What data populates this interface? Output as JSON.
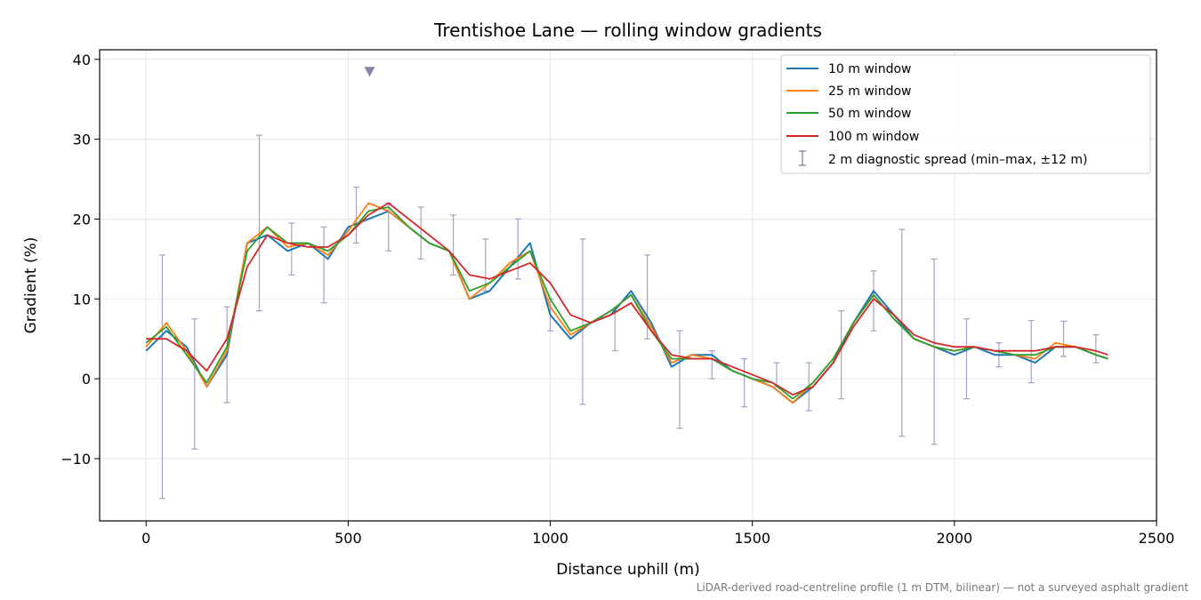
{
  "chart_data": {
    "type": "line",
    "title": "Trentishoe Lane — rolling window gradients",
    "xlabel": "Distance uphill (m)",
    "ylabel": "Gradient (%)",
    "xlim": [
      -115,
      2500
    ],
    "ylim": [
      -17.8,
      41.2
    ],
    "xticks": [
      0,
      500,
      1000,
      1500,
      2000,
      2500
    ],
    "yticks": [
      -10,
      0,
      10,
      20,
      30,
      40
    ],
    "grid": true,
    "legend_position": "top-right",
    "footnote": "LiDAR-derived road-centreline profile (1 m DTM, bilinear) — not a surveyed asphalt gradient",
    "x": [
      0,
      50,
      100,
      150,
      200,
      250,
      300,
      350,
      400,
      450,
      500,
      550,
      600,
      650,
      700,
      750,
      800,
      850,
      900,
      950,
      1000,
      1050,
      1100,
      1150,
      1200,
      1250,
      1300,
      1350,
      1400,
      1450,
      1500,
      1550,
      1600,
      1650,
      1700,
      1750,
      1800,
      1850,
      1900,
      1950,
      2000,
      2050,
      2100,
      2150,
      2200,
      2250,
      2300,
      2350,
      2380
    ],
    "series": [
      {
        "name": "10 m window",
        "color": "#1f77b4",
        "values": [
          3.5,
          6.0,
          4.0,
          -1.0,
          3.0,
          17.0,
          18.0,
          16.0,
          17.0,
          15.0,
          19.0,
          20.0,
          21.0,
          19.0,
          17.0,
          16.0,
          10.0,
          11.0,
          14.0,
          17.0,
          8.0,
          5.0,
          7.0,
          8.0,
          11.0,
          7.0,
          1.5,
          3.0,
          3.0,
          1.0,
          0.0,
          -1.0,
          -3.0,
          -1.0,
          2.0,
          7.0,
          11.0,
          8.0,
          5.0,
          4.0,
          3.0,
          4.0,
          3.0,
          3.0,
          2.0,
          4.0,
          4.0,
          3.0,
          2.5
        ]
      },
      {
        "name": "25 m window",
        "color": "#ff7f0e",
        "values": [
          4.0,
          7.0,
          3.5,
          -1.0,
          3.5,
          17.0,
          19.0,
          16.5,
          17.0,
          15.5,
          18.5,
          22.0,
          21.0,
          19.0,
          17.0,
          16.0,
          10.0,
          12.0,
          14.5,
          16.0,
          9.0,
          5.5,
          7.0,
          8.5,
          10.5,
          6.5,
          2.0,
          3.0,
          2.5,
          1.0,
          0.0,
          -1.0,
          -3.0,
          -0.5,
          2.5,
          7.0,
          10.5,
          7.5,
          5.0,
          4.0,
          3.5,
          4.0,
          3.5,
          3.0,
          2.5,
          4.5,
          4.0,
          3.0,
          2.5
        ]
      },
      {
        "name": "50 m window",
        "color": "#2ca02c",
        "values": [
          4.5,
          6.5,
          3.0,
          -0.5,
          4.0,
          16.0,
          19.0,
          17.0,
          17.0,
          16.0,
          18.0,
          21.0,
          21.5,
          19.0,
          17.0,
          16.0,
          11.0,
          12.0,
          14.0,
          16.0,
          10.0,
          6.0,
          7.0,
          8.5,
          10.5,
          6.0,
          2.5,
          2.5,
          2.5,
          1.0,
          0.0,
          -0.5,
          -2.5,
          -0.5,
          2.5,
          7.0,
          10.5,
          7.5,
          5.0,
          4.0,
          3.5,
          4.0,
          3.5,
          3.0,
          3.0,
          4.0,
          4.0,
          3.0,
          2.5
        ]
      },
      {
        "name": "100 m window",
        "color": "#d62728",
        "values": [
          5.0,
          5.0,
          3.5,
          1.0,
          5.0,
          14.0,
          18.0,
          17.0,
          16.5,
          16.5,
          18.0,
          20.5,
          22.0,
          20.0,
          18.0,
          16.0,
          13.0,
          12.5,
          13.5,
          14.5,
          12.0,
          8.0,
          7.0,
          8.0,
          9.5,
          6.0,
          3.0,
          2.5,
          2.5,
          1.5,
          0.5,
          -0.5,
          -2.0,
          -1.0,
          2.0,
          6.5,
          10.0,
          8.0,
          5.5,
          4.5,
          4.0,
          4.0,
          3.5,
          3.5,
          3.5,
          4.0,
          4.0,
          3.5,
          3.0
        ]
      }
    ],
    "error_bars": {
      "name": "2 m diagnostic spread (min–max, ±12 m)",
      "color": "#9b8fb9",
      "points": [
        {
          "x": 40,
          "lo": -15.0,
          "hi": 15.5
        },
        {
          "x": 120,
          "lo": -8.8,
          "hi": 7.5
        },
        {
          "x": 200,
          "lo": -3.0,
          "hi": 9.0
        },
        {
          "x": 280,
          "lo": 8.5,
          "hi": 30.5
        },
        {
          "x": 360,
          "lo": 13.0,
          "hi": 19.5
        },
        {
          "x": 440,
          "lo": 9.5,
          "hi": 19.0
        },
        {
          "x": 520,
          "lo": 17.0,
          "hi": 24.0
        },
        {
          "x": 600,
          "lo": 16.0,
          "hi": 22.0
        },
        {
          "x": 680,
          "lo": 15.0,
          "hi": 21.5
        },
        {
          "x": 760,
          "lo": 13.0,
          "hi": 20.5
        },
        {
          "x": 840,
          "lo": 11.0,
          "hi": 17.5
        },
        {
          "x": 920,
          "lo": 12.5,
          "hi": 20.0
        },
        {
          "x": 1000,
          "lo": 6.0,
          "hi": 10.0
        },
        {
          "x": 1080,
          "lo": -3.2,
          "hi": 17.5
        },
        {
          "x": 1160,
          "lo": 3.5,
          "hi": 8.5
        },
        {
          "x": 1240,
          "lo": 5.0,
          "hi": 15.5
        },
        {
          "x": 1320,
          "lo": -6.2,
          "hi": 6.0
        },
        {
          "x": 1400,
          "lo": 0.0,
          "hi": 3.5
        },
        {
          "x": 1480,
          "lo": -3.5,
          "hi": 2.5
        },
        {
          "x": 1560,
          "lo": -1.0,
          "hi": 2.0
        },
        {
          "x": 1640,
          "lo": -4.0,
          "hi": 2.0
        },
        {
          "x": 1720,
          "lo": -2.5,
          "hi": 8.5
        },
        {
          "x": 1800,
          "lo": 6.0,
          "hi": 13.5
        },
        {
          "x": 1870,
          "lo": -7.2,
          "hi": 18.7
        },
        {
          "x": 1950,
          "lo": -8.2,
          "hi": 15.0
        },
        {
          "x": 2030,
          "lo": -2.5,
          "hi": 7.5
        },
        {
          "x": 2110,
          "lo": 1.5,
          "hi": 4.5
        },
        {
          "x": 2190,
          "lo": -0.5,
          "hi": 7.3
        },
        {
          "x": 2270,
          "lo": 2.8,
          "hi": 7.2
        },
        {
          "x": 2350,
          "lo": 2.0,
          "hi": 5.5
        }
      ]
    },
    "marker": {
      "x": 553,
      "y": 38.5,
      "color": "#8c7fa8",
      "shape": "triangle-down"
    }
  }
}
